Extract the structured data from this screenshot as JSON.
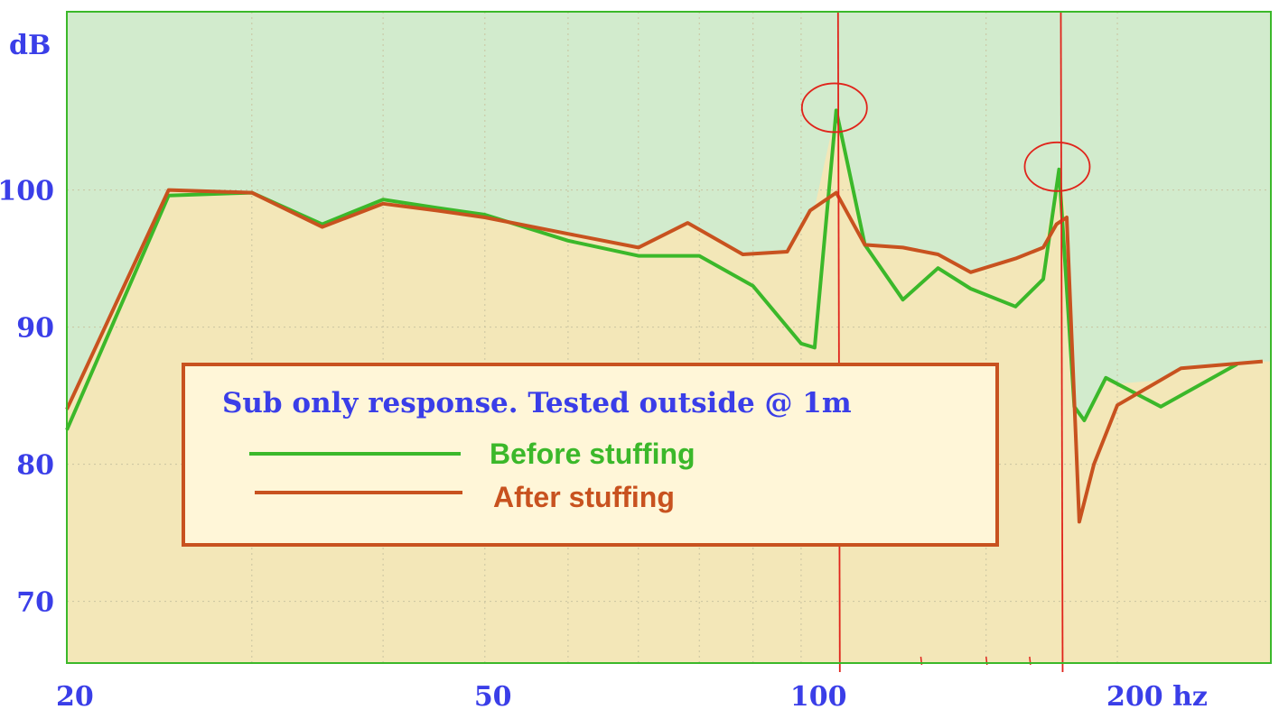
{
  "chart_data": {
    "type": "line",
    "title": "",
    "ylabel": "dB",
    "xlabel": "",
    "x_scale": "log",
    "xlim": [
      20,
      280
    ],
    "ylim": [
      65.5,
      113
    ],
    "y_ticks": [
      {
        "value": 100,
        "label": "100"
      },
      {
        "value": 90,
        "label": "90"
      },
      {
        "value": 80,
        "label": "80"
      },
      {
        "value": 70,
        "label": "70"
      }
    ],
    "x_ticks": [
      {
        "value": 20,
        "label": "20"
      },
      {
        "value": 50,
        "label": "50"
      },
      {
        "value": 100,
        "label": "100"
      },
      {
        "value": 200,
        "label": "200 hz"
      }
    ],
    "grid": true,
    "legend": {
      "title": "Sub only response. Tested outside @ 1m",
      "placement": "center-left"
    },
    "series": [
      {
        "name": "Before stuffing",
        "color": "#3bb82a",
        "points": [
          [
            20,
            82.5
          ],
          [
            25,
            99.6
          ],
          [
            30,
            99.8
          ],
          [
            35,
            97.5
          ],
          [
            40,
            99.3
          ],
          [
            45,
            98.7
          ],
          [
            50,
            98.2
          ],
          [
            60,
            96.3
          ],
          [
            70,
            95.2
          ],
          [
            80,
            95.2
          ],
          [
            90,
            93.0
          ],
          [
            100,
            88.8
          ],
          [
            103,
            88.5
          ],
          [
            108,
            105.8
          ],
          [
            115,
            96.0
          ],
          [
            125,
            92.0
          ],
          [
            135,
            94.3
          ],
          [
            145,
            92.8
          ],
          [
            160,
            91.5
          ],
          [
            170,
            93.5
          ],
          [
            176,
            101.5
          ],
          [
            182,
            84.2
          ],
          [
            186,
            83.2
          ],
          [
            195,
            86.3
          ],
          [
            220,
            84.2
          ],
          [
            260,
            87.3
          ]
        ]
      },
      {
        "name": "After stuffing",
        "color": "#c8521f",
        "points": [
          [
            20,
            84.0
          ],
          [
            25,
            100.0
          ],
          [
            30,
            99.8
          ],
          [
            35,
            97.3
          ],
          [
            40,
            99.0
          ],
          [
            45,
            98.5
          ],
          [
            50,
            98.0
          ],
          [
            60,
            96.8
          ],
          [
            70,
            95.8
          ],
          [
            78,
            97.6
          ],
          [
            88,
            95.3
          ],
          [
            97,
            95.5
          ],
          [
            102,
            98.5
          ],
          [
            108,
            99.8
          ],
          [
            115,
            96.0
          ],
          [
            125,
            95.8
          ],
          [
            135,
            95.3
          ],
          [
            145,
            94.0
          ],
          [
            160,
            95.0
          ],
          [
            170,
            95.8
          ],
          [
            175,
            97.5
          ],
          [
            179,
            98.0
          ],
          [
            184,
            75.8
          ],
          [
            190,
            80.0
          ],
          [
            200,
            84.3
          ],
          [
            230,
            87.0
          ],
          [
            275,
            87.5
          ]
        ]
      }
    ],
    "annotations": [
      {
        "type": "circle",
        "x": 108,
        "y": 105.8
      },
      {
        "type": "circle",
        "x": 176,
        "y": 101.5
      },
      {
        "type": "vline",
        "x": 108
      },
      {
        "type": "vline",
        "x": 176
      }
    ]
  },
  "colors": {
    "above_fill": "#d2ebcd",
    "below_fill": "#f3e7b8",
    "plot_border": "#3bb82a",
    "grid": "#c9c3a0",
    "annotation": "#e0241b",
    "legend_border": "#c8521f",
    "legend_fill": "#fff6d8",
    "axis_text": "#3a3ee8"
  }
}
